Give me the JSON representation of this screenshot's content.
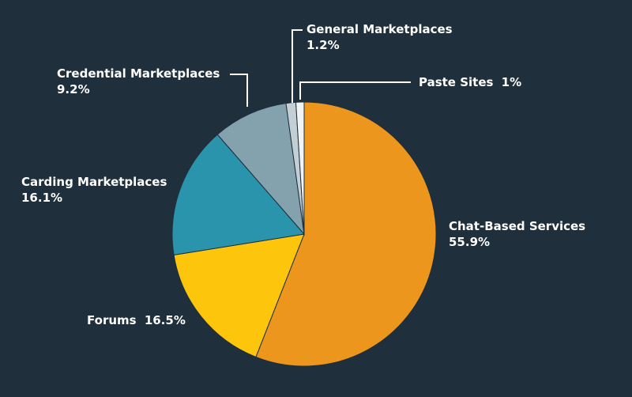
{
  "chart_data": {
    "type": "pie",
    "title": "",
    "slices": [
      {
        "name": "Chat-Based Services",
        "value": 55.9,
        "pct_label": "55.9%",
        "color": "#ec961d"
      },
      {
        "name": "Forums",
        "value": 16.5,
        "pct_label": "16.5%",
        "color": "#fdc60d"
      },
      {
        "name": "Carding Marketplaces",
        "value": 16.1,
        "pct_label": "16.1%",
        "color": "#2a94ac"
      },
      {
        "name": "Credential Marketplaces",
        "value": 9.2,
        "pct_label": "9.2%",
        "color": "#84a2ae"
      },
      {
        "name": "General Marketplaces",
        "value": 1.2,
        "pct_label": "1.2%",
        "color": "#c3cfd5"
      },
      {
        "name": "Paste Sites",
        "value": 1.0,
        "pct_label": "1%",
        "color": "#f1f4f5"
      }
    ],
    "start": "12 o'clock",
    "direction": "clockwise",
    "colors": {
      "background": "#1f2f3b",
      "label_text": "#ffffff",
      "slice_border": "#1f2f3b"
    }
  }
}
